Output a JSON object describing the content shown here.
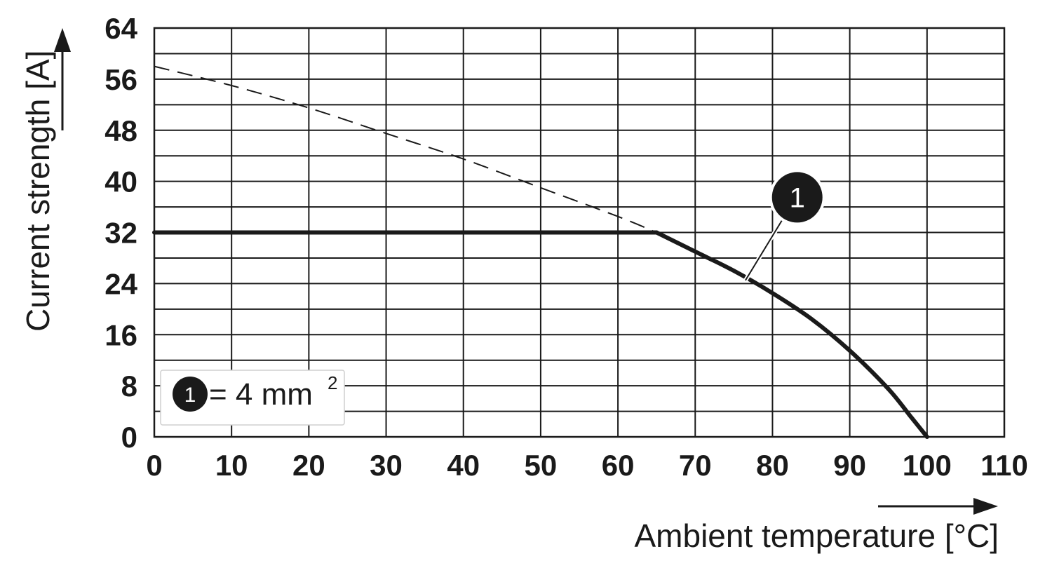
{
  "chart_data": {
    "type": "line",
    "title": "",
    "xlabel": "Ambient temperature [°C]",
    "ylabel": "Current strength [A]",
    "xlim": [
      0,
      110
    ],
    "ylim": [
      0,
      64
    ],
    "x_ticks": [
      0,
      10,
      20,
      30,
      40,
      50,
      60,
      70,
      80,
      90,
      100,
      110
    ],
    "y_ticks": [
      0,
      8,
      16,
      24,
      32,
      40,
      48,
      56,
      64
    ],
    "x_tick_labels": [
      "0",
      "10",
      "20",
      "30",
      "40",
      "50",
      "60",
      "70",
      "80",
      "90",
      "100",
      "110"
    ],
    "y_tick_labels": [
      "0",
      "8",
      "16",
      "24",
      "32",
      "40",
      "48",
      "56",
      "64"
    ],
    "grid": true,
    "series": [
      {
        "style": "solid",
        "color": "#1a1a1a",
        "x": [
          0,
          65,
          70,
          75,
          80,
          85,
          90,
          95,
          98,
          100
        ],
        "y": [
          32,
          32,
          29,
          26,
          22.5,
          18.5,
          13.5,
          7.5,
          3,
          0
        ]
      },
      {
        "style": "dashed",
        "color": "#1a1a1a",
        "x": [
          0,
          10,
          20,
          30,
          40,
          50,
          60,
          65
        ],
        "y": [
          58,
          55,
          51.5,
          47.5,
          43.5,
          39,
          34.5,
          32
        ]
      }
    ],
    "annotation": {
      "label": "1",
      "points_to": {
        "x": 76.5,
        "y": 24.5
      },
      "badge_at": {
        "x": 83.2,
        "y": 37.5
      }
    },
    "legend": {
      "placement": "bottom-left",
      "marker": "1",
      "text": "= 4 mm",
      "superscript": "2"
    }
  }
}
